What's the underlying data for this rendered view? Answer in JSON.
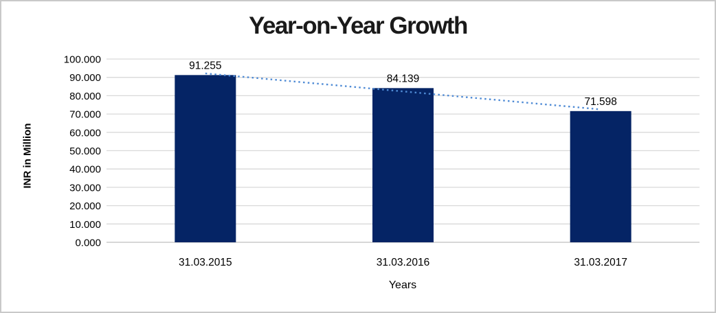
{
  "window": {
    "background": "#FFFFFF",
    "border_color": "#C9C9C9"
  },
  "chart_data": {
    "type": "bar",
    "title": "Year-on-Year Growth",
    "categories": [
      "31.03.2015",
      "31.03.2016",
      "31.03.2017"
    ],
    "series": [
      {
        "name": "INR in Million",
        "values": [
          91.255,
          84.139,
          71.598
        ]
      }
    ],
    "data_labels": [
      "91.255",
      "84.139",
      "71.598"
    ],
    "xlabel": "Years",
    "ylabel": "INR in Million",
    "ylim": [
      0,
      100
    ],
    "ytick_interval": 10,
    "ytick_labels": [
      "0.000",
      "10.000",
      "20.000",
      "30.000",
      "40.000",
      "50.000",
      "60.000",
      "70.000",
      "80.000",
      "90.000",
      "100.000"
    ],
    "grid": true,
    "legend": "none",
    "trendline": {
      "type": "linear",
      "style": "dotted",
      "color": "#4F8BD5",
      "applies_to": "INR in Million"
    },
    "colors": {
      "bar": "#052465",
      "gridline": "#D9D9D9",
      "axis_line": "#BFBFBF",
      "label_text": "#000000",
      "title_text": "#1A1A1A"
    }
  }
}
